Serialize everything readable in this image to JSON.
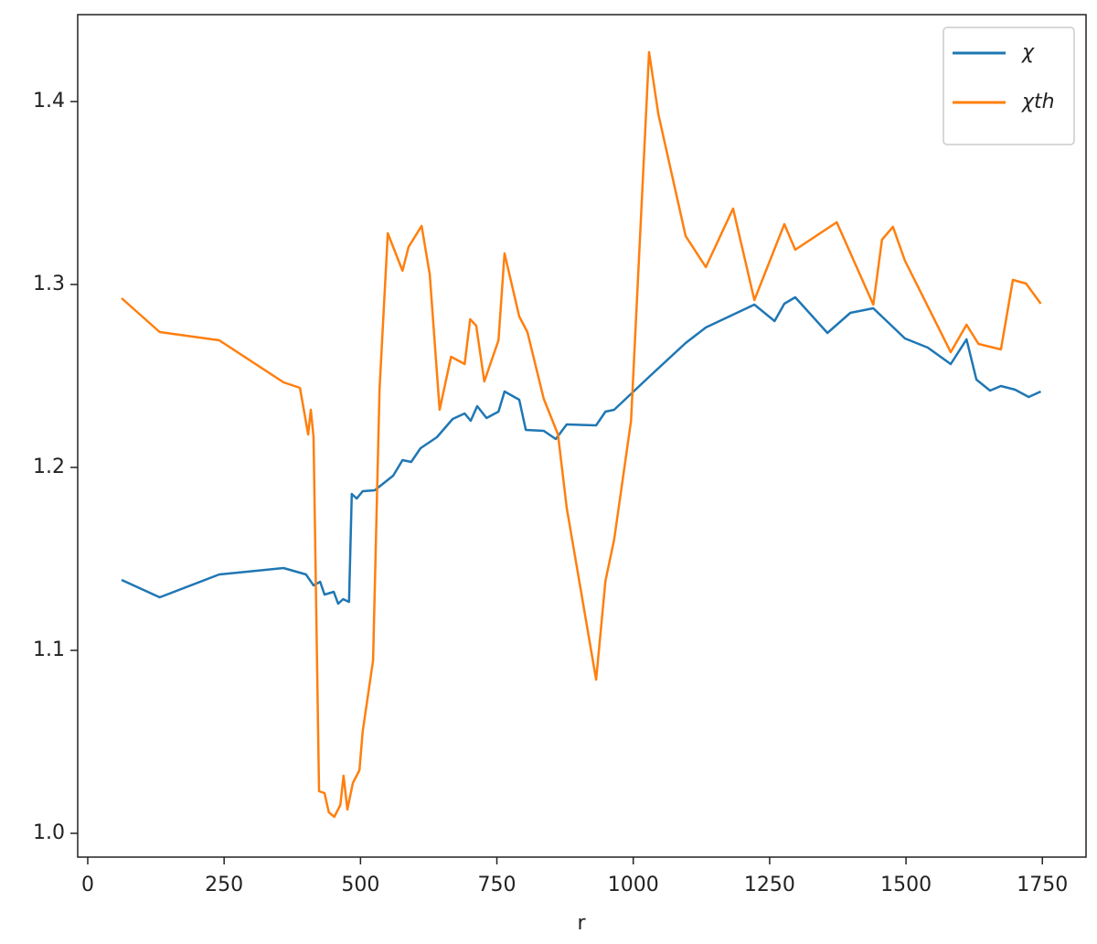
{
  "chart_data": {
    "type": "line",
    "xlabel": "r",
    "xlim": [
      -18.4,
      1830
    ],
    "ylim": [
      0.987,
      1.4475
    ],
    "xticks": [
      0,
      250,
      500,
      750,
      1000,
      1250,
      1500,
      1750
    ],
    "yticks": [
      {
        "value": 1,
        "label": "1.0"
      },
      1.1,
      1.2,
      1.3,
      1.4
    ],
    "legend": "upper right",
    "grid": false,
    "series": [
      {
        "name": "χ",
        "color": "#1f77b4",
        "x": [
          62,
          132,
          241,
          359,
          400,
          414,
          426,
          434,
          451,
          459,
          468,
          479,
          484,
          493,
          504,
          526,
          560,
          577,
          593,
          610,
          640,
          669,
          691,
          702,
          714,
          731,
          753,
          764,
          791,
          803,
          836,
          858,
          878,
          932,
          949,
          965,
          1029,
          1096,
          1133,
          1222,
          1259,
          1277,
          1297,
          1356,
          1398,
          1440,
          1498,
          1540,
          1582,
          1611,
          1629,
          1654,
          1674,
          1700,
          1725,
          1747
        ],
        "values": [
          1.1385,
          1.129,
          1.1415,
          1.145,
          1.1415,
          1.1355,
          1.1375,
          1.1305,
          1.132,
          1.1255,
          1.128,
          1.1265,
          1.1855,
          1.183,
          1.187,
          1.1875,
          1.1955,
          1.204,
          1.203,
          1.2105,
          1.2165,
          1.2265,
          1.2295,
          1.2255,
          1.2335,
          1.227,
          1.2305,
          1.2415,
          1.237,
          1.2205,
          1.22,
          1.2155,
          1.2235,
          1.223,
          1.2305,
          1.2315,
          1.2495,
          1.268,
          1.2765,
          1.289,
          1.28,
          1.2895,
          1.293,
          1.2735,
          1.2845,
          1.287,
          1.2705,
          1.2655,
          1.2565,
          1.27,
          1.248,
          1.242,
          1.2445,
          1.2425,
          1.2385,
          1.2415
        ]
      },
      {
        "name": "χth",
        "color": "#ff7f0e",
        "x": [
          62,
          132,
          241,
          359,
          389,
          404,
          409,
          414,
          424,
          434,
          442,
          452,
          463,
          469,
          476,
          486,
          498,
          504,
          523,
          535,
          550,
          577,
          588,
          612,
          627,
          645,
          666,
          691,
          701,
          712,
          727,
          753,
          764,
          791,
          806,
          836,
          862,
          878,
          932,
          949,
          965,
          996,
          1029,
          1046,
          1096,
          1133,
          1183,
          1222,
          1277,
          1297,
          1373,
          1440,
          1456,
          1476,
          1498,
          1582,
          1611,
          1633,
          1674,
          1696,
          1720,
          1747
        ],
        "values": [
          1.2925,
          1.274,
          1.2695,
          1.2465,
          1.2435,
          1.218,
          1.2315,
          1.2165,
          1.023,
          1.022,
          1.0115,
          1.009,
          1.0155,
          1.0315,
          1.013,
          1.0275,
          1.0345,
          1.0555,
          1.0945,
          1.243,
          1.328,
          1.3075,
          1.3205,
          1.332,
          1.3055,
          1.2315,
          1.2605,
          1.2565,
          1.281,
          1.2775,
          1.247,
          1.2695,
          1.317,
          1.2825,
          1.274,
          1.2375,
          1.218,
          1.178,
          1.084,
          1.138,
          1.1605,
          1.2255,
          1.427,
          1.393,
          1.3265,
          1.3095,
          1.3415,
          1.2915,
          1.333,
          1.319,
          1.334,
          1.289,
          1.3245,
          1.3315,
          1.313,
          1.263,
          1.278,
          1.2675,
          1.2645,
          1.3025,
          1.3005,
          1.2895
        ]
      }
    ]
  }
}
